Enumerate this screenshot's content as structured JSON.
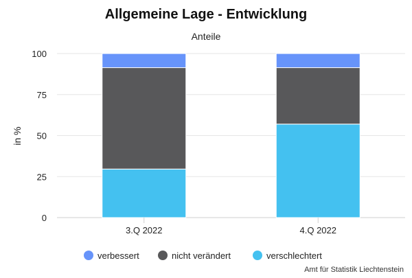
{
  "chart_data": {
    "type": "bar",
    "stacked": true,
    "title": "Allgemeine Lage - Entwicklung",
    "subtitle": "Anteile",
    "xlabel": "",
    "ylabel": "in %",
    "ylim": [
      0,
      100
    ],
    "yticks": [
      0,
      25,
      50,
      75,
      100
    ],
    "grid": true,
    "legend_position": "bottom",
    "categories": [
      "3.Q 2022",
      "4.Q 2022"
    ],
    "series": [
      {
        "name": "verschlechtert",
        "values": [
          29.6,
          57.0
        ],
        "color": "#44c1f0"
      },
      {
        "name": "nicht verändert",
        "values": [
          61.8,
          34.4
        ],
        "color": "#58585a"
      },
      {
        "name": "verbessert",
        "values": [
          8.6,
          8.6
        ],
        "color": "#6794fa"
      }
    ],
    "legend_order": [
      "verbessert",
      "nicht verändert",
      "verschlechtert"
    ],
    "credit": "Amt für Statistik Liechtenstein"
  }
}
